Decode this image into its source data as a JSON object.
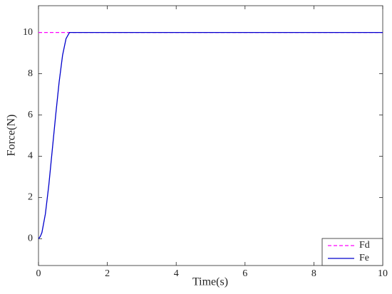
{
  "chart_data": {
    "type": "line",
    "xlabel": "Time(s)",
    "ylabel": "Force(N)",
    "x": [
      0,
      0.05,
      0.1,
      0.2,
      0.3,
      0.4,
      0.5,
      0.6,
      0.7,
      0.8,
      0.9,
      10
    ],
    "series": [
      {
        "name": "Fd",
        "color": "#ff00ff",
        "dashed": true,
        "values": [
          10,
          10,
          10,
          10,
          10,
          10,
          10,
          10,
          10,
          10,
          10,
          10
        ]
      },
      {
        "name": "Fe",
        "color": "#0000cc",
        "dashed": false,
        "values": [
          0,
          0.1,
          0.3,
          1.2,
          2.6,
          4.3,
          6.0,
          7.6,
          8.9,
          9.7,
          10,
          10
        ]
      }
    ],
    "xlim": [
      0,
      10
    ],
    "xticks": [
      0,
      2,
      4,
      6,
      8,
      10
    ],
    "ylim": [
      -1.3,
      11.3
    ],
    "yticks": [
      0,
      2,
      4,
      6,
      8,
      10
    ],
    "grid": false,
    "legend": "lower right"
  }
}
